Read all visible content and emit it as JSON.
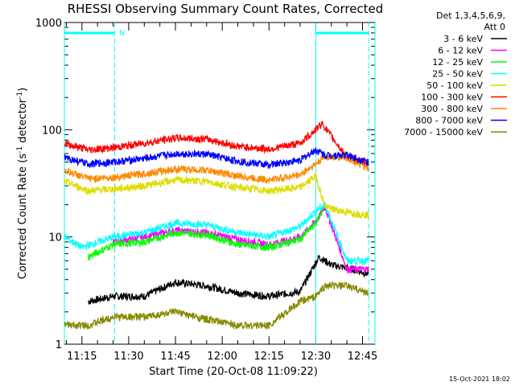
{
  "chart_data": {
    "type": "line",
    "title": "RHESSI Observing Summary Count Rates, Corrected",
    "xlabel": "Start Time (20-Oct-08 11:09:22)",
    "ylabel_main": "Corrected Count Rate (s",
    "ylabel_sup1": "-1",
    "ylabel_mid": " detector",
    "ylabel_sup2": "-1",
    "ylabel_end": ")",
    "yscale": "log",
    "ylim": [
      1,
      1000
    ],
    "xlim": [
      "11:09:22",
      "12:49:00"
    ],
    "x_tick_labels": [
      "11:15",
      "11:30",
      "11:45",
      "12:00",
      "12:15",
      "12:30",
      "12:45"
    ],
    "y_tick_labels": [
      "1",
      "10",
      "100",
      "1000"
    ],
    "legend_header": [
      "Det 1,3,4,5,6,9,",
      "Att 0"
    ],
    "legend_position": "right",
    "timestamp": "15-Oct-2021 18:02",
    "flag_marker": "N",
    "cyan_markers": {
      "solid_vertical": [
        "11:09:22",
        "12:30:00",
        "12:49:00"
      ],
      "dashed_vertical": [
        "11:25:30",
        "12:47:00"
      ],
      "horizontal_bars": [
        [
          "11:09:22",
          "11:25:30"
        ],
        [
          "12:30:00",
          "12:47:00"
        ]
      ]
    },
    "series": [
      {
        "name": "3 - 6 keV",
        "color": "#000000",
        "times": [
          "11:17",
          "11:25",
          "11:35",
          "11:45",
          "11:55",
          "12:05",
          "12:15",
          "12:25",
          "12:31",
          "12:35",
          "12:42",
          "12:47"
        ],
        "values": [
          2.5,
          2.8,
          2.8,
          3.8,
          3.5,
          3.0,
          2.8,
          3.1,
          6.5,
          5.5,
          5.0,
          4.5
        ]
      },
      {
        "name": "6 - 12 keV",
        "color": "#ff00ff",
        "times": [
          "11:25",
          "11:35",
          "11:45",
          "11:55",
          "12:05",
          "12:15",
          "12:25",
          "12:30",
          "12:33",
          "12:40",
          "12:47"
        ],
        "values": [
          9.0,
          10.0,
          11.5,
          11.0,
          9.5,
          8.5,
          10.0,
          14.0,
          19.0,
          5.0,
          5.0
        ]
      },
      {
        "name": "12 - 25 keV",
        "color": "#00ff00",
        "times": [
          "11:17",
          "11:25",
          "11:35",
          "11:45",
          "11:55",
          "12:05",
          "12:15",
          "12:25",
          "12:30",
          "12:33"
        ],
        "values": [
          6.5,
          8.5,
          9.0,
          11.0,
          10.5,
          8.5,
          8.0,
          9.5,
          13.5,
          20.0
        ]
      },
      {
        "name": "25 - 50 keV",
        "color": "#00ffff",
        "times": [
          "11:09:22",
          "11:15",
          "11:25",
          "11:35",
          "11:45",
          "11:55",
          "12:05",
          "12:15",
          "12:25",
          "12:30",
          "12:33",
          "12:40",
          "12:47"
        ],
        "values": [
          10.0,
          8.0,
          10.0,
          11.0,
          13.5,
          13.0,
          11.0,
          10.0,
          12.5,
          17.5,
          20.0,
          6.0,
          6.0
        ]
      },
      {
        "name": "50 - 100 keV",
        "color": "#dddd00",
        "times": [
          "11:09:22",
          "11:17",
          "11:25",
          "11:35",
          "11:45",
          "11:55",
          "12:05",
          "12:15",
          "12:25",
          "12:30",
          "12:33",
          "12:40",
          "12:47"
        ],
        "values": [
          33.0,
          27.0,
          28.0,
          30.0,
          34.0,
          33.0,
          29.0,
          27.0,
          29.0,
          37.0,
          19.0,
          17.0,
          16.0
        ]
      },
      {
        "name": "100 - 300 keV",
        "color": "#ff0000",
        "times": [
          "11:09:22",
          "11:17",
          "11:25",
          "11:35",
          "11:45",
          "11:55",
          "12:05",
          "12:15",
          "12:25",
          "12:30",
          "12:32",
          "12:40",
          "12:47"
        ],
        "values": [
          75.0,
          65.0,
          68.0,
          75.0,
          84.0,
          82.0,
          70.0,
          66.0,
          75.0,
          100.0,
          115.0,
          55.0,
          48.0
        ]
      },
      {
        "name": "300 - 800 keV",
        "color": "#ff8800",
        "times": [
          "11:09:22",
          "11:17",
          "11:25",
          "11:35",
          "11:45",
          "11:55",
          "12:05",
          "12:15",
          "12:25",
          "12:30",
          "12:33",
          "12:40",
          "12:47"
        ],
        "values": [
          42.0,
          35.0,
          36.0,
          39.0,
          43.0,
          42.0,
          37.0,
          34.0,
          38.0,
          48.0,
          56.0,
          55.0,
          43.0
        ]
      },
      {
        "name": "800 - 7000 keV",
        "color": "#0000ff",
        "times": [
          "11:09:22",
          "11:17",
          "11:25",
          "11:35",
          "11:45",
          "11:55",
          "12:05",
          "12:15",
          "12:25",
          "12:30",
          "12:33",
          "12:40",
          "12:47"
        ],
        "values": [
          55.0,
          48.0,
          50.0,
          54.0,
          60.0,
          59.0,
          51.0,
          47.0,
          52.0,
          65.0,
          58.0,
          58.0,
          50.0
        ]
      },
      {
        "name": "7000 - 15000 keV",
        "color": "#888800",
        "times": [
          "11:09:22",
          "11:17",
          "11:25",
          "11:35",
          "11:45",
          "11:55",
          "12:05",
          "12:15",
          "12:25",
          "12:30",
          "12:33",
          "12:40",
          "12:47"
        ],
        "values": [
          1.5,
          1.5,
          1.8,
          1.8,
          2.0,
          1.7,
          1.5,
          1.5,
          2.5,
          2.8,
          3.5,
          3.5,
          3.0
        ]
      }
    ]
  }
}
